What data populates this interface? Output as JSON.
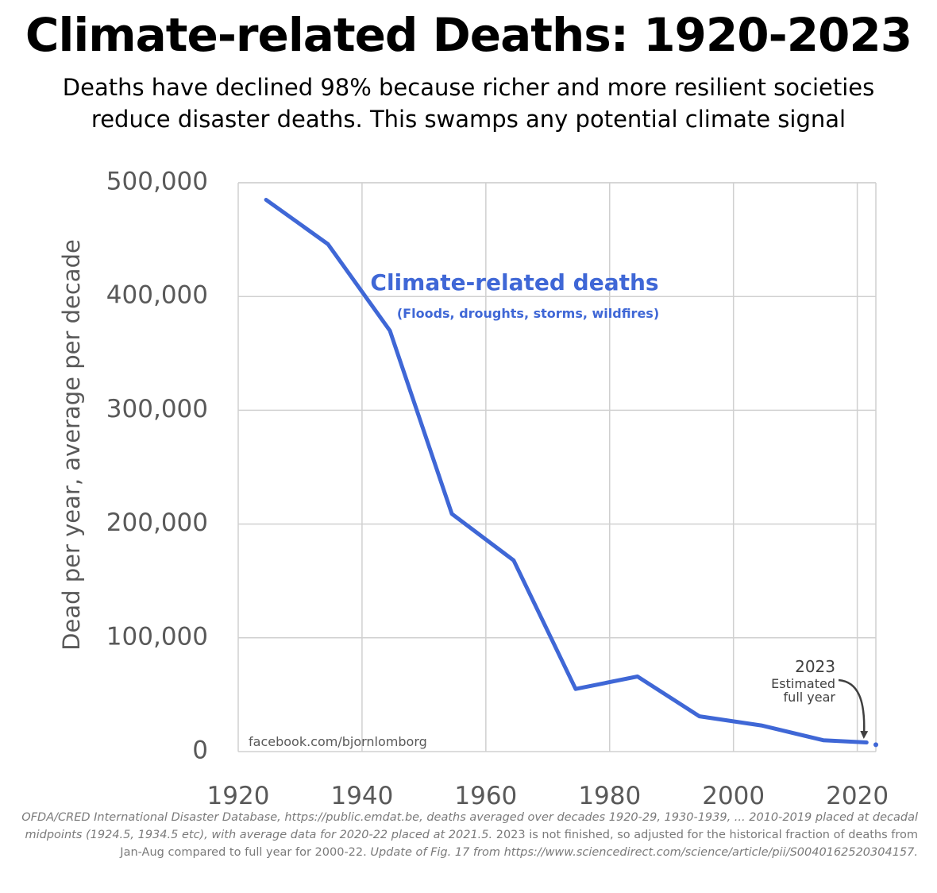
{
  "header": {
    "title": "Climate-related Deaths: 1920-2023",
    "subtitle_line1": "Deaths have declined 98% because richer and more resilient societies",
    "subtitle_line2": "reduce disaster deaths. This swamps any potential climate signal"
  },
  "chart_data": {
    "type": "line",
    "title": "Climate-related Deaths: 1920-2023",
    "xlabel": "",
    "ylabel": "Dead per year, average per decade",
    "xlim": [
      1920,
      2023
    ],
    "ylim": [
      0,
      500000
    ],
    "x_ticks": [
      1920,
      1940,
      1960,
      1980,
      2000,
      2020
    ],
    "x_tick_labels": [
      "1920",
      "1940",
      "1960",
      "1980",
      "2000",
      "2020"
    ],
    "y_ticks": [
      0,
      100000,
      200000,
      300000,
      400000,
      500000
    ],
    "y_tick_labels": [
      "0",
      "100,000",
      "200,000",
      "300,000",
      "400,000",
      "500,000"
    ],
    "grid": true,
    "series": [
      {
        "name": "Climate-related deaths",
        "sublabel": "(Floods, droughts, storms, wildfires)",
        "color": "#3f67d6",
        "x": [
          1924.5,
          1934.5,
          1944.5,
          1954.5,
          1964.5,
          1974.5,
          1984.5,
          1994.5,
          2004.5,
          2014.5,
          2021.5
        ],
        "values": [
          485000,
          446000,
          370000,
          209000,
          168000,
          55000,
          66000,
          31000,
          23000,
          10000,
          8000
        ]
      }
    ],
    "estimate_point": {
      "x": 2023,
      "value": 6000,
      "color": "#3f67d6"
    },
    "annotation": {
      "year": "2023",
      "line1": "Estimated",
      "line2": "full year"
    },
    "watermark": "facebook.com/bjornlomborg"
  },
  "source": {
    "part1": "OFDA/CRED International Disaster Database, https://public.emdat.be, deaths averaged over decades 1920-29, 1930-1939, ... 2010-2019 placed at decadal midpoints (1924.5, 1934.5 etc), with average data for 2020-22 placed at 2021.5.",
    "part2": " 2023 is not finished, so adjusted for the historical fraction of deaths from Jan-Aug compared to full year for 2000-22.",
    "part3": " Update of Fig. 17 from https://www.sciencedirect.com/science/article/pii/S0040162520304157."
  }
}
